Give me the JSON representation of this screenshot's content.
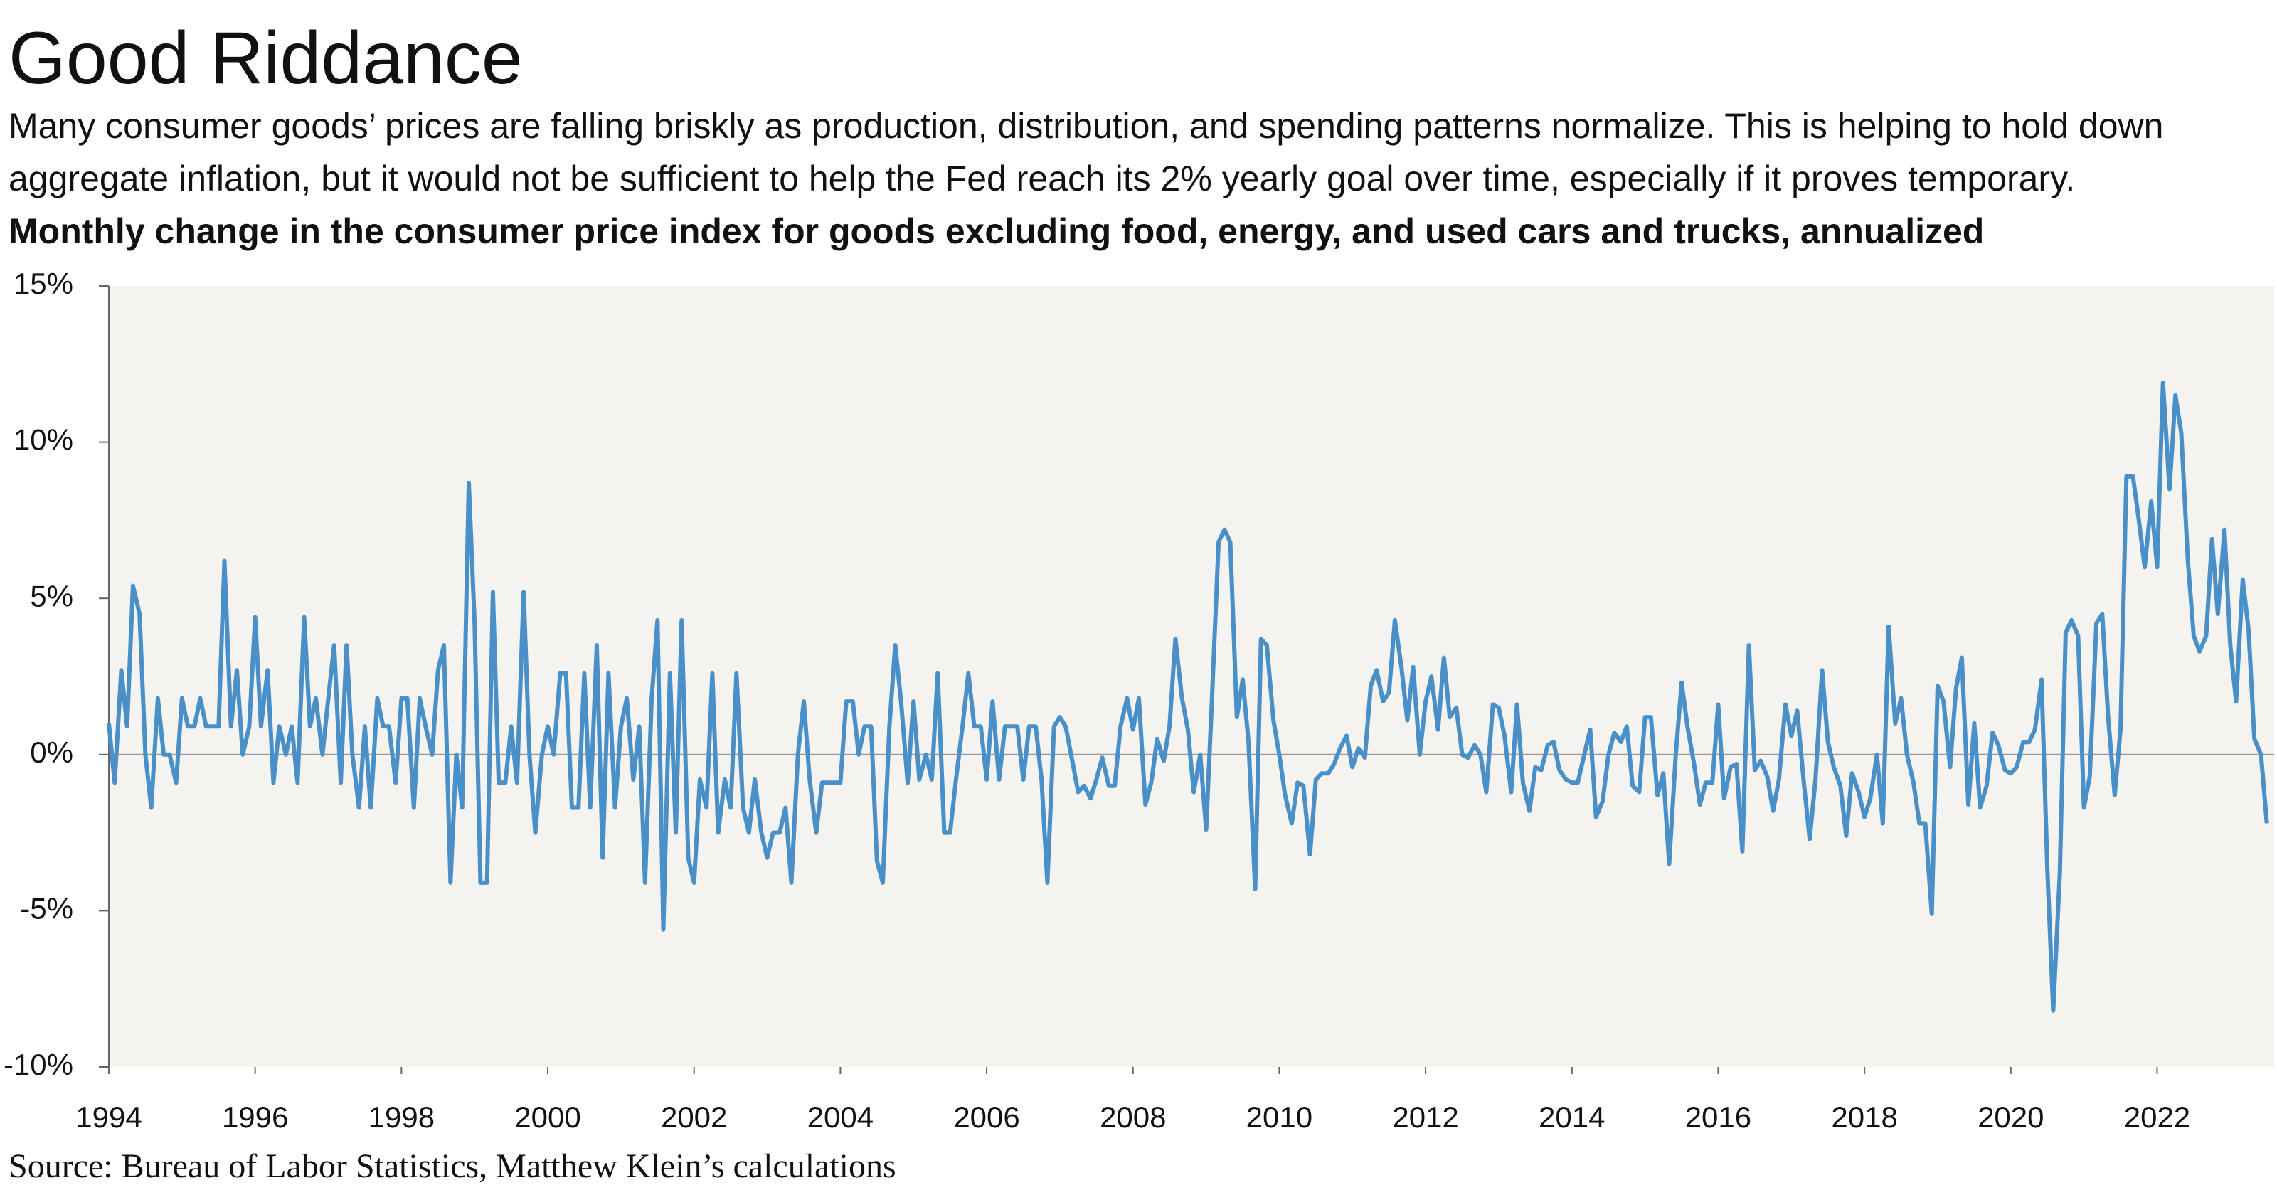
{
  "chart_data": {
    "type": "line",
    "title": "Good Riddance",
    "subtitle": "Many consumer goods’ prices are falling briskly as production, distribution, and spending patterns normalize. This is helping to hold down aggregate inflation, but it would not be sufficient to help the Fed reach its 2% yearly goal over time, especially if it proves temporary.",
    "chart_title": "Monthly change in the consumer price index for goods excluding food, energy, and used cars and trucks, annualized",
    "source": "Source: Bureau of Labor Statistics, Matthew Klein’s calculations",
    "color": "#4a90c8",
    "grid": false,
    "xlim": [
      1994,
      2023.6
    ],
    "xticks": [
      1994,
      1996,
      1998,
      2000,
      2002,
      2004,
      2006,
      2008,
      2010,
      2012,
      2014,
      2016,
      2018,
      2020,
      2022
    ],
    "ylim": [
      -10,
      15
    ],
    "yticks": [
      {
        "value": -10,
        "label": "-10%"
      },
      {
        "value": -5,
        "label": "-5%"
      },
      {
        "value": 0,
        "label": "0%"
      },
      {
        "value": 5,
        "label": "5%"
      },
      {
        "value": 10,
        "label": "10%"
      },
      {
        "value": 15,
        "label": "15%"
      }
    ],
    "x": [
      1994.0,
      1994.08,
      1994.17,
      1994.25,
      1994.33,
      1994.42,
      1994.5,
      1994.58,
      1994.67,
      1994.75,
      1994.83,
      1994.92,
      1995.0,
      1995.08,
      1995.17,
      1995.25,
      1995.33,
      1995.42,
      1995.5,
      1995.58,
      1995.67,
      1995.75,
      1995.83,
      1995.92,
      1996.0,
      1996.08,
      1996.17,
      1996.25,
      1996.33,
      1996.42,
      1996.5,
      1996.58,
      1996.67,
      1996.75,
      1996.83,
      1996.92,
      1997.0,
      1997.08,
      1997.17,
      1997.25,
      1997.33,
      1997.42,
      1997.5,
      1997.58,
      1997.67,
      1997.75,
      1997.83,
      1997.92,
      1998.0,
      1998.08,
      1998.17,
      1998.25,
      1998.33,
      1998.42,
      1998.5,
      1998.58,
      1998.67,
      1998.75,
      1998.83,
      1998.92,
      1999.0,
      1999.08,
      1999.17,
      1999.25,
      1999.33,
      1999.42,
      1999.5,
      1999.58,
      1999.67,
      1999.75,
      1999.83,
      1999.92,
      2000.0,
      2000.08,
      2000.17,
      2000.25,
      2000.33,
      2000.42,
      2000.5,
      2000.58,
      2000.67,
      2000.75,
      2000.83,
      2000.92,
      2001.0,
      2001.08,
      2001.17,
      2001.25,
      2001.33,
      2001.42,
      2001.5,
      2001.58,
      2001.67,
      2001.75,
      2001.83,
      2001.92,
      2002.0,
      2002.08,
      2002.17,
      2002.25,
      2002.33,
      2002.42,
      2002.5,
      2002.58,
      2002.67,
      2002.75,
      2002.83,
      2002.92,
      2003.0,
      2003.08,
      2003.17,
      2003.25,
      2003.33,
      2003.42,
      2003.5,
      2003.58,
      2003.67,
      2003.75,
      2003.83,
      2003.92,
      2004.0,
      2004.08,
      2004.17,
      2004.25,
      2004.33,
      2004.42,
      2004.5,
      2004.58,
      2004.67,
      2004.75,
      2004.83,
      2004.92,
      2005.0,
      2005.08,
      2005.17,
      2005.25,
      2005.33,
      2005.42,
      2005.5,
      2005.58,
      2005.67,
      2005.75,
      2005.83,
      2005.92,
      2006.0,
      2006.08,
      2006.17,
      2006.25,
      2006.33,
      2006.42,
      2006.5,
      2006.58,
      2006.67,
      2006.75,
      2006.83,
      2006.92,
      2007.0,
      2007.08,
      2007.17,
      2007.25,
      2007.33,
      2007.42,
      2007.5,
      2007.58,
      2007.67,
      2007.75,
      2007.83,
      2007.92,
      2008.0,
      2008.08,
      2008.17,
      2008.25,
      2008.33,
      2008.42,
      2008.5,
      2008.58,
      2008.67,
      2008.75,
      2008.83,
      2008.92,
      2009.0,
      2009.08,
      2009.17,
      2009.25,
      2009.33,
      2009.42,
      2009.5,
      2009.58,
      2009.67,
      2009.75,
      2009.83,
      2009.92,
      2010.0,
      2010.08,
      2010.17,
      2010.25,
      2010.33,
      2010.42,
      2010.5,
      2010.58,
      2010.67,
      2010.75,
      2010.83,
      2010.92,
      2011.0,
      2011.08,
      2011.17,
      2011.25,
      2011.33,
      2011.42,
      2011.5,
      2011.58,
      2011.67,
      2011.75,
      2011.83,
      2011.92,
      2012.0,
      2012.08,
      2012.17,
      2012.25,
      2012.33,
      2012.42,
      2012.5,
      2012.58,
      2012.67,
      2012.75,
      2012.83,
      2012.92,
      2013.0,
      2013.08,
      2013.17,
      2013.25,
      2013.33,
      2013.42,
      2013.5,
      2013.58,
      2013.67,
      2013.75,
      2013.83,
      2013.92,
      2014.0,
      2014.08,
      2014.17,
      2014.25,
      2014.33,
      2014.42,
      2014.5,
      2014.58,
      2014.67,
      2014.75,
      2014.83,
      2014.92,
      2015.0,
      2015.08,
      2015.17,
      2015.25,
      2015.33,
      2015.42,
      2015.5,
      2015.58,
      2015.67,
      2015.75,
      2015.83,
      2015.92,
      2016.0,
      2016.08,
      2016.17,
      2016.25,
      2016.33,
      2016.42,
      2016.5,
      2016.58,
      2016.67,
      2016.75,
      2016.83,
      2016.92,
      2017.0,
      2017.08,
      2017.17,
      2017.25,
      2017.33,
      2017.42,
      2017.5,
      2017.58,
      2017.67,
      2017.75,
      2017.83,
      2017.92,
      2018.0,
      2018.08,
      2018.17,
      2018.25,
      2018.33,
      2018.42,
      2018.5,
      2018.58,
      2018.67,
      2018.75,
      2018.83,
      2018.92,
      2019.0,
      2019.08,
      2019.17,
      2019.25,
      2019.33,
      2019.42,
      2019.5,
      2019.58,
      2019.67,
      2019.75,
      2019.83,
      2019.92,
      2020.0,
      2020.08,
      2020.17,
      2020.25,
      2020.33,
      2020.42,
      2020.5,
      2020.58,
      2020.67,
      2020.75,
      2020.83,
      2020.92,
      2021.0,
      2021.08,
      2021.17,
      2021.25,
      2021.33,
      2021.42,
      2021.5,
      2021.58,
      2021.67,
      2021.75,
      2021.83,
      2021.92,
      2022.0,
      2022.08,
      2022.17,
      2022.25,
      2022.33,
      2022.42,
      2022.5,
      2022.58,
      2022.67,
      2022.75,
      2022.83,
      2022.92,
      2023.0,
      2023.08,
      2023.17,
      2023.25,
      2023.33,
      2023.42,
      2023.5
    ],
    "values": [
      1,
      -0.9,
      2.7,
      0.9,
      5.4,
      4.5,
      0,
      -1.7,
      1.8,
      0,
      0,
      -0.9,
      1.8,
      0.9,
      0.9,
      1.8,
      0.9,
      0.9,
      0.9,
      6.2,
      0.9,
      2.7,
      0,
      0.9,
      4.4,
      0.9,
      2.7,
      -0.9,
      0.9,
      0,
      0.9,
      -0.9,
      4.4,
      0.9,
      1.8,
      0,
      1.8,
      3.5,
      -0.9,
      3.5,
      0,
      -1.7,
      0.9,
      -1.7,
      1.8,
      0.9,
      0.9,
      -0.9,
      1.8,
      1.8,
      -1.7,
      1.8,
      0.9,
      0,
      2.7,
      3.5,
      -4.1,
      0,
      -1.7,
      8.7,
      4.2,
      -4.1,
      -4.1,
      5.2,
      -0.9,
      -0.9,
      0.9,
      -0.9,
      5.2,
      0,
      -2.5,
      0,
      0.9,
      0,
      2.6,
      2.6,
      -1.7,
      -1.7,
      2.6,
      -1.7,
      3.5,
      -3.3,
      2.6,
      -1.7,
      0.9,
      1.8,
      -0.8,
      0.9,
      -4.1,
      1.8,
      4.3,
      -5.6,
      2.6,
      -2.5,
      4.3,
      -3.3,
      -4.1,
      -0.8,
      -1.7,
      2.6,
      -2.5,
      -0.8,
      -1.7,
      2.6,
      -1.7,
      -2.5,
      -0.8,
      -2.5,
      -3.3,
      -2.5,
      -2.5,
      -1.7,
      -4.1,
      0,
      1.7,
      -0.8,
      -2.5,
      -0.9,
      -0.9,
      -0.9,
      -0.9,
      1.7,
      1.7,
      0,
      0.9,
      0.9,
      -3.4,
      -4.1,
      0.9,
      3.5,
      1.7,
      -0.9,
      1.7,
      -0.8,
      0,
      -0.8,
      2.6,
      -2.5,
      -2.5,
      -0.8,
      0.9,
      2.6,
      0.9,
      0.9,
      -0.8,
      1.7,
      -0.8,
      0.9,
      0.9,
      0.9,
      -0.8,
      0.9,
      0.9,
      -0.8,
      -4.1,
      0.9,
      1.2,
      0.9,
      -0.2,
      -1.2,
      -1,
      -1.4,
      -0.8,
      -0.1,
      -1,
      -1,
      0.9,
      1.8,
      0.8,
      1.8,
      -1.6,
      -0.9,
      0.5,
      -0.2,
      0.9,
      3.7,
      1.8,
      0.8,
      -1.2,
      0,
      -2.4,
      1.8,
      6.8,
      7.2,
      6.8,
      1.2,
      2.4,
      0.4,
      -4.3,
      3.7,
      3.5,
      1.1,
      0,
      -1.3,
      -2.2,
      -0.9,
      -1,
      -3.2,
      -0.8,
      -0.6,
      -0.6,
      -0.3,
      0.2,
      0.6,
      -0.4,
      0.2,
      -0.1,
      2.2,
      2.7,
      1.7,
      2,
      4.3,
      2.8,
      1.1,
      2.8,
      0,
      1.7,
      2.5,
      0.8,
      3.1,
      1.2,
      1.5,
      0,
      -0.1,
      0.3,
      0,
      -1.2,
      1.6,
      1.5,
      0.6,
      -1.2,
      1.6,
      -0.9,
      -1.8,
      -0.4,
      -0.5,
      0.3,
      0.4,
      -0.5,
      -0.8,
      -0.9,
      -0.9,
      0,
      0.8,
      -2,
      -1.5,
      0,
      0.7,
      0.4,
      0.9,
      -1,
      -1.2,
      1.2,
      1.2,
      -1.3,
      -0.6,
      -3.5,
      0,
      2.3,
      0.9,
      -0.3,
      -1.6,
      -0.9,
      -0.9,
      1.6,
      -1.4,
      -0.4,
      -0.3,
      -3.1,
      3.5,
      -0.5,
      -0.2,
      -0.7,
      -1.8,
      -0.8,
      1.6,
      0.6,
      1.4,
      -0.9,
      -2.7,
      -0.8,
      2.7,
      0.4,
      -0.4,
      -1,
      -2.6,
      -0.6,
      -1.2,
      -2,
      -1.4,
      0,
      -2.2,
      4.1,
      1,
      1.8,
      0,
      -0.9,
      -2.2,
      -2.2,
      -5.1,
      2.2,
      1.7,
      -0.4,
      2.1,
      3.1,
      -1.6,
      1,
      -1.7,
      -1,
      0.7,
      0.3,
      -0.5,
      -0.6,
      -0.4,
      0.4,
      0.4,
      0.8,
      2.4,
      -3.7,
      -8.2,
      -3.8,
      3.9,
      4.3,
      3.8,
      -1.7,
      -0.7,
      4.2,
      4.5,
      1.2,
      -1.3,
      0.8,
      8.9,
      8.9,
      7.5,
      6,
      8.1,
      6,
      11.9,
      8.5,
      11.5,
      10.3,
      6.2,
      3.8,
      3.3,
      3.8,
      6.9,
      4.5,
      7.2,
      3.5,
      1.7,
      5.6,
      4,
      0.5,
      0,
      -2.2
    ]
  }
}
